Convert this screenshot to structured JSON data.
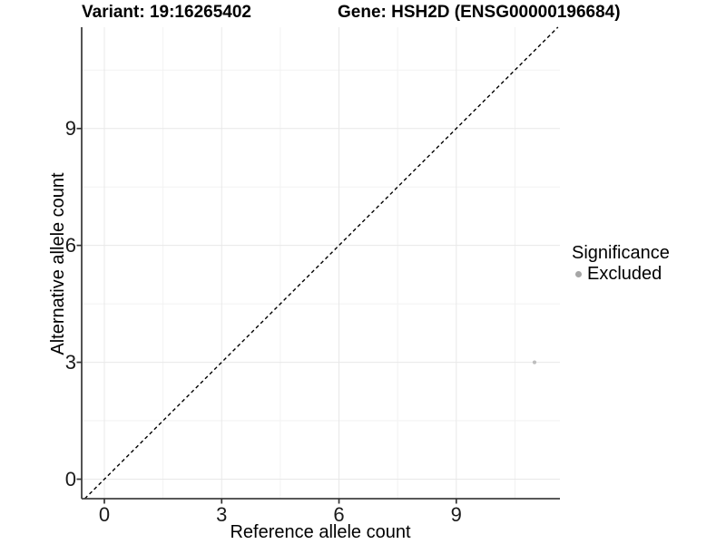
{
  "chart_data": {
    "type": "scatter",
    "title_left": "Variant: 19:16265402",
    "title_right": "Gene: HSH2D (ENSG00000196684)",
    "xlabel": "Reference allele count",
    "ylabel": "Alternative allele count",
    "xlim": [
      -0.58,
      11.65
    ],
    "ylim": [
      -0.5,
      11.6
    ],
    "x_ticks": [
      0,
      3,
      6,
      9
    ],
    "y_ticks": [
      0,
      3,
      6,
      9
    ],
    "minor_tick_step": 1.5,
    "grid": true,
    "legend_position": "right",
    "reference_line": {
      "type": "identity y=x",
      "style": "dashed",
      "color": "#000000"
    },
    "series": [
      {
        "name": "Excluded",
        "color": "#bdbdbd",
        "points": [
          {
            "x": 11,
            "y": 3
          }
        ]
      }
    ],
    "legend": {
      "title": "Significance",
      "items": [
        {
          "label": "Excluded",
          "color": "#a6a6a6"
        }
      ]
    }
  },
  "colors": {
    "background": "#ffffff",
    "grid_major": "#e8e8e8",
    "grid_minor": "#f2f2f2",
    "axis_line": "#404040",
    "tick_mark": "#333333",
    "text": "#000000"
  }
}
